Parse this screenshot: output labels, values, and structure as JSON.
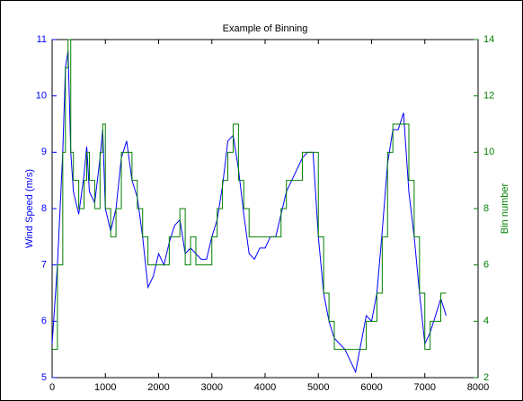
{
  "chart_data": {
    "type": "line",
    "title": "Example of Binning",
    "ylabel": "Wind Speed (m/s)",
    "y2label": "Bin number",
    "x": [
      0,
      100,
      200,
      250,
      300,
      350,
      400,
      500,
      600,
      650,
      700,
      800,
      900,
      950,
      1000,
      1100,
      1200,
      1300,
      1400,
      1500,
      1600,
      1700,
      1800,
      1900,
      2000,
      2100,
      2200,
      2300,
      2400,
      2500,
      2600,
      2700,
      2800,
      2900,
      3000,
      3100,
      3200,
      3300,
      3400,
      3500,
      3600,
      3700,
      3800,
      3900,
      4000,
      4100,
      4200,
      4300,
      4400,
      4500,
      4600,
      4700,
      4800,
      4900,
      5000,
      5100,
      5200,
      5300,
      5400,
      5500,
      5600,
      5700,
      5800,
      5900,
      6000,
      6100,
      6200,
      6300,
      6400,
      6500,
      6600,
      6700,
      6800,
      6900,
      7000,
      7100,
      7200,
      7300,
      7400
    ],
    "series": [
      {
        "color": "#0000ff",
        "values": [
          5.6,
          7.0,
          9.0,
          10.5,
          10.8,
          9.0,
          8.3,
          7.9,
          8.6,
          9.1,
          8.3,
          8.1,
          8.9,
          9.4,
          8.0,
          7.6,
          8.0,
          8.9,
          9.2,
          8.5,
          8.2,
          7.5,
          6.6,
          6.8,
          7.2,
          7.0,
          7.4,
          7.7,
          7.8,
          7.2,
          7.3,
          7.2,
          7.1,
          7.1,
          7.5,
          7.8,
          8.4,
          9.2,
          9.3,
          8.7,
          7.9,
          7.2,
          7.1,
          7.3,
          7.3,
          7.5,
          7.5,
          7.9,
          8.3,
          8.5,
          8.7,
          8.9,
          9.0,
          9.0,
          7.5,
          6.5,
          6.0,
          5.7,
          5.6,
          5.5,
          5.3,
          5.1,
          5.6,
          6.1,
          6.0,
          6.5,
          7.6,
          8.8,
          9.4,
          9.4,
          9.7,
          8.3,
          7.5,
          6.5,
          5.6,
          5.8,
          6.1,
          6.4,
          6.1
        ]
      },
      {
        "color": "#008000",
        "axis": "y2",
        "step": true,
        "values": [
          3,
          6,
          10,
          13,
          14,
          10,
          9,
          8,
          9,
          10,
          9,
          8,
          10,
          11,
          8,
          7,
          8,
          10,
          10,
          9,
          8,
          7,
          6,
          6,
          6,
          6,
          7,
          7,
          8,
          6,
          7,
          6,
          6,
          6,
          7,
          8,
          9,
          10,
          11,
          9,
          8,
          7,
          7,
          7,
          7,
          7,
          7,
          8,
          9,
          9,
          9,
          10,
          10,
          10,
          7,
          5,
          4,
          3,
          3,
          3,
          3,
          3,
          3,
          4,
          4,
          5,
          7,
          10,
          11,
          11,
          11,
          9,
          7,
          5,
          3,
          4,
          4,
          5,
          5
        ]
      }
    ],
    "xlim": [
      0,
      8000
    ],
    "xticks": [
      0,
      1000,
      2000,
      3000,
      4000,
      5000,
      6000,
      7000,
      8000
    ],
    "ylim": [
      5,
      11
    ],
    "yticks": [
      5,
      6,
      7,
      8,
      9,
      10,
      11
    ],
    "y2lim": [
      2,
      14
    ],
    "y2ticks": [
      2,
      4,
      6,
      8,
      10,
      12,
      14
    ]
  }
}
